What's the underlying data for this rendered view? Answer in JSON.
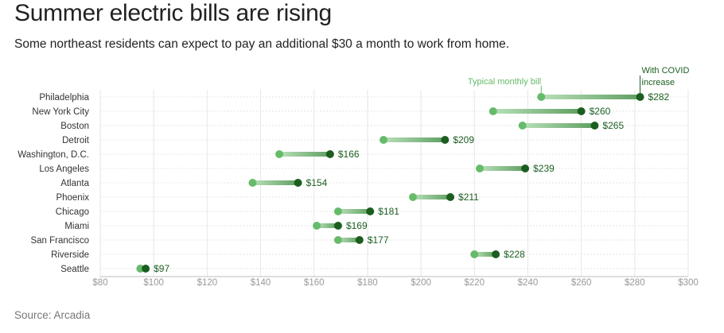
{
  "title": "Summer electric bills are rising",
  "subtitle": "Some northeast residents can expect to pay an additional $30 a month to work from home.",
  "source": "Source: Arcadia",
  "colors": {
    "typical": "#66bb6a",
    "covid": "#1b5e20",
    "grid": "#e6e6e6",
    "axis": "#bdbdbd"
  },
  "chart_data": {
    "type": "dumbbell",
    "title": "Summer electric bills are rising",
    "subtitle": "Some northeast residents can expect to pay an additional $30 a month to work from home.",
    "xlim": [
      80,
      300
    ],
    "xticks": [
      80,
      100,
      120,
      140,
      160,
      180,
      200,
      220,
      240,
      260,
      280,
      300
    ],
    "xtick_labels": [
      "$80",
      "$100",
      "$120",
      "$140",
      "$160",
      "$180",
      "$200",
      "$220",
      "$240",
      "$260",
      "$280",
      "$300"
    ],
    "categories": [
      "Philadelphia",
      "New York City",
      "Boston",
      "Detroit",
      "Washington, D.C.",
      "Los Angeles",
      "Atlanta",
      "Phoenix",
      "Chicago",
      "Miami",
      "San Francisco",
      "Riverside",
      "Seattle"
    ],
    "series": [
      {
        "name": "Typical monthly bill",
        "values": [
          245,
          227,
          238,
          186,
          147,
          222,
          137,
          197,
          169,
          161,
          169,
          220,
          95
        ]
      },
      {
        "name": "With COVID increase",
        "values": [
          282,
          260,
          265,
          209,
          166,
          239,
          154,
          211,
          181,
          169,
          177,
          228,
          97
        ]
      }
    ],
    "value_labels": [
      "$282",
      "$260",
      "$265",
      "$209",
      "$166",
      "$239",
      "$154",
      "$211",
      "$181",
      "$169",
      "$177",
      "$228",
      "$97"
    ],
    "annotations": {
      "typical": "Typical monthly bill",
      "covid_line1": "With COVID",
      "covid_line2": "increase"
    },
    "grid": true
  }
}
